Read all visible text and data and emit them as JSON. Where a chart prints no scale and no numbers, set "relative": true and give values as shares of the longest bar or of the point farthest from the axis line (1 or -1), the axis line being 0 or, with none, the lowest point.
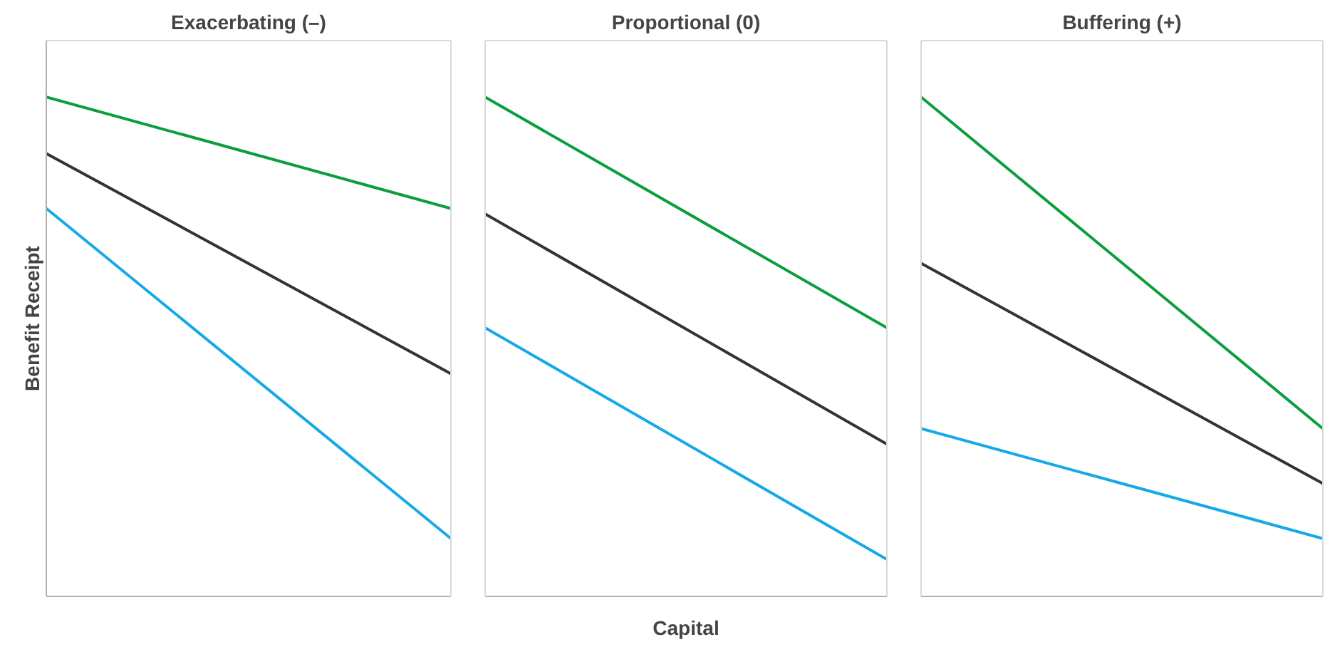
{
  "chart_data": [
    {
      "type": "line",
      "title": "Exacerbating (–)",
      "ylabel": "Benefit Receipt",
      "relative": true,
      "categories": [
        null,
        null
      ],
      "series": [
        {
          "color": "#0a9e3c",
          "values": [
            1,
            0.777
          ]
        },
        {
          "color": "#333333",
          "values": [
            0.887,
            0.446
          ]
        },
        {
          "color": "#15a9e6",
          "values": [
            0.777,
            0.116
          ]
        }
      ]
    },
    {
      "type": "line",
      "title": "Proportional (0)",
      "xlabel": "Capital",
      "relative": true,
      "categories": [
        null,
        null
      ],
      "series": [
        {
          "color": "#0a9e3c",
          "values": [
            1,
            0.538
          ]
        },
        {
          "color": "#333333",
          "values": [
            0.766,
            0.305
          ]
        },
        {
          "color": "#15a9e6",
          "values": [
            0.538,
            0.074
          ]
        }
      ]
    },
    {
      "type": "line",
      "title": "Buffering (+)",
      "relative": true,
      "categories": [
        null,
        null
      ],
      "series": [
        {
          "color": "#0a9e3c",
          "values": [
            1,
            0.336
          ]
        },
        {
          "color": "#333333",
          "values": [
            0.667,
            0.226
          ]
        },
        {
          "color": "#15a9e6",
          "values": [
            0.336,
            0.116
          ]
        }
      ]
    }
  ]
}
